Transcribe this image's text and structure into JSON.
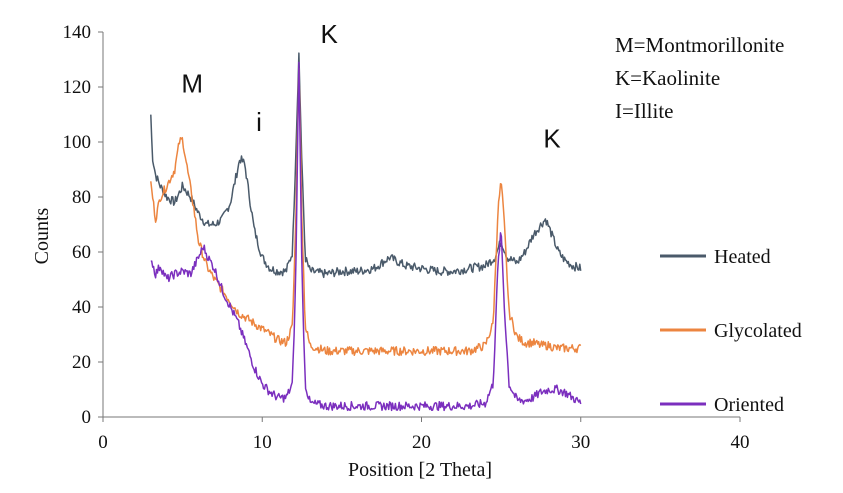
{
  "chart_data": {
    "type": "line",
    "title": "",
    "xlabel": "Position [2 Theta]",
    "ylabel": "Counts",
    "xlim": [
      0,
      40
    ],
    "ylim": [
      0,
      140
    ],
    "x_ticks": [
      "0",
      "10",
      "20",
      "30",
      "40"
    ],
    "y_ticks": [
      "0",
      "20",
      "40",
      "60",
      "80",
      "100",
      "120",
      "140"
    ],
    "grid": false,
    "legend_placement": "right",
    "key_text": [
      "M=Montmorillonite",
      "K=Kaolinite",
      "I=Illite"
    ],
    "peak_labels": [
      {
        "text": "M",
        "x": 5.6,
        "y": 118
      },
      {
        "text": "i",
        "x": 9.8,
        "y": 104
      },
      {
        "text": "K",
        "x": 14.2,
        "y": 136
      },
      {
        "text": "K",
        "x": 28.2,
        "y": 98
      }
    ],
    "series": [
      {
        "name": "Heated",
        "color": "#4a5a6a",
        "x": [
          3.0,
          3.1,
          3.3,
          3.6,
          4.0,
          4.5,
          5.0,
          5.5,
          6.0,
          6.5,
          7.0,
          7.5,
          8.0,
          8.3,
          8.6,
          8.9,
          9.2,
          9.5,
          10.0,
          10.5,
          11.0,
          11.5,
          11.9,
          12.1,
          12.3,
          12.5,
          12.7,
          13.0,
          14.0,
          15.0,
          16.0,
          17.0,
          18.0,
          19.0,
          20.0,
          21.0,
          22.0,
          23.0,
          24.0,
          24.6,
          25.0,
          25.4,
          26.0,
          26.5,
          27.0,
          27.5,
          27.8,
          28.2,
          28.6,
          29.0,
          29.5,
          30.0
        ],
        "y": [
          110,
          95,
          88,
          84,
          80,
          78,
          84,
          80,
          74,
          70,
          70,
          72,
          78,
          86,
          94,
          92,
          80,
          68,
          58,
          54,
          53,
          53,
          60,
          95,
          132,
          90,
          58,
          53,
          52,
          53,
          53,
          54,
          58,
          55,
          54,
          53,
          53,
          54,
          55,
          58,
          64,
          58,
          56,
          60,
          66,
          70,
          72,
          66,
          60,
          57,
          55,
          54
        ]
      },
      {
        "name": "Glycolated",
        "color": "#ec8540",
        "x": [
          3.0,
          3.3,
          3.6,
          4.0,
          4.5,
          4.8,
          5.0,
          5.3,
          5.7,
          6.0,
          6.5,
          7.0,
          7.5,
          8.0,
          8.5,
          9.0,
          9.5,
          10.0,
          10.5,
          11.0,
          11.5,
          11.9,
          12.1,
          12.3,
          12.5,
          12.7,
          13.0,
          14.0,
          15.0,
          16.0,
          17.0,
          18.0,
          19.0,
          20.0,
          21.0,
          22.0,
          23.0,
          24.0,
          24.5,
          24.8,
          25.0,
          25.2,
          25.5,
          26.0,
          26.5,
          27.0,
          27.5,
          28.0,
          28.5,
          29.0,
          29.5,
          30.0
        ],
        "y": [
          85,
          72,
          80,
          84,
          90,
          100,
          101,
          90,
          76,
          64,
          55,
          50,
          46,
          42,
          38,
          36,
          34,
          32,
          30,
          28,
          27,
          33,
          70,
          128,
          70,
          33,
          26,
          24,
          24,
          24,
          24,
          24,
          24,
          24,
          24,
          24,
          24,
          26,
          34,
          75,
          86,
          70,
          38,
          29,
          27,
          27,
          26,
          26,
          25,
          25,
          25,
          25
        ]
      },
      {
        "name": "Oriented",
        "color": "#7b2fbe",
        "x": [
          3.0,
          3.3,
          3.6,
          4.0,
          4.5,
          5.0,
          5.5,
          6.0,
          6.3,
          6.6,
          7.0,
          7.5,
          8.0,
          8.5,
          9.0,
          9.5,
          10.0,
          10.5,
          11.0,
          11.5,
          11.9,
          12.1,
          12.3,
          12.5,
          12.7,
          13.0,
          14.0,
          15.0,
          16.0,
          17.0,
          18.0,
          19.0,
          20.0,
          21.0,
          22.0,
          23.0,
          24.0,
          24.5,
          24.8,
          25.0,
          25.2,
          25.5,
          26.0,
          26.5,
          27.0,
          27.5,
          28.0,
          28.5,
          29.0,
          29.5,
          30.0
        ],
        "y": [
          58,
          52,
          55,
          50,
          52,
          53,
          52,
          58,
          62,
          58,
          54,
          46,
          40,
          34,
          26,
          18,
          12,
          9,
          7,
          7,
          12,
          50,
          130,
          50,
          12,
          5,
          4,
          4,
          4,
          4,
          4,
          4,
          4,
          4,
          4,
          4,
          5,
          12,
          55,
          68,
          40,
          12,
          6,
          6,
          7,
          9,
          10,
          10,
          9,
          7,
          5
        ]
      }
    ]
  }
}
